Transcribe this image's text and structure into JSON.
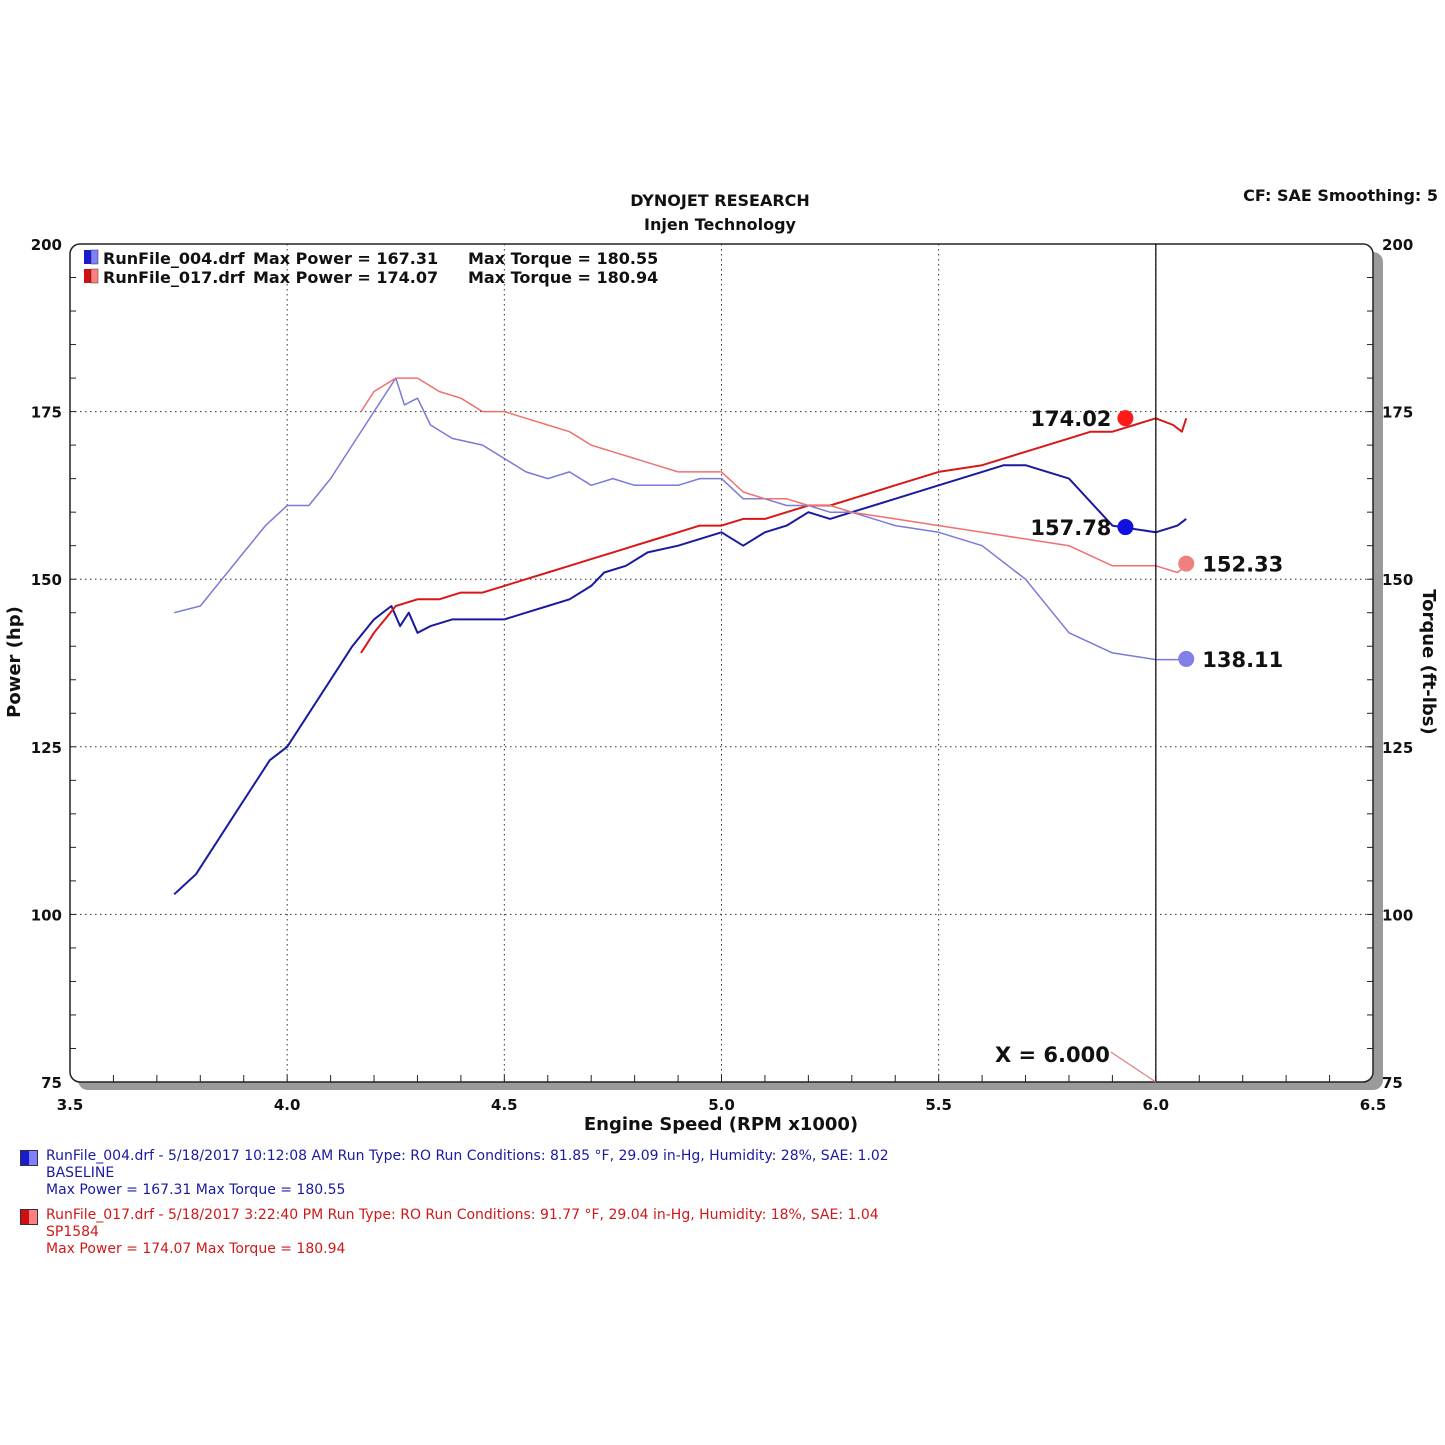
{
  "header": {
    "title": "DYNOJET RESEARCH",
    "subtitle": "Injen Technology",
    "settings": "CF: SAE  Smoothing: 5"
  },
  "legend": [
    {
      "file": "RunFile_004.drf",
      "max_power_text": "Max Power = 167.31",
      "max_torque_text": "Max Torque = 180.55",
      "color": "#1a1ad0"
    },
    {
      "file": "RunFile_017.drf",
      "max_power_text": "Max Power = 174.07",
      "max_torque_text": "Max Torque = 180.94",
      "color": "#d01010"
    }
  ],
  "cursor": {
    "label": "X = 6.000",
    "x": 6.0
  },
  "markers": [
    {
      "label": "174.02",
      "x": 5.93,
      "y": 174.02,
      "color": "#ff1a1a"
    },
    {
      "label": "157.78",
      "x": 5.93,
      "y": 157.78,
      "color": "#1010e0"
    },
    {
      "label": "152.33",
      "x": 6.07,
      "y": 152.33,
      "color": "#f08080"
    },
    {
      "label": "138.11",
      "x": 6.07,
      "y": 138.11,
      "color": "#8080e8"
    }
  ],
  "footer": {
    "runs": [
      {
        "line1": "RunFile_004.drf - 5/18/2017 10:12:08 AM  Run Type: RO  Run Conditions: 81.85 °F, 29.09 in-Hg,  Humidity:  28%, SAE: 1.02",
        "line2": "BASELINE",
        "line3": "Max Power = 167.31  Max Torque = 180.55"
      },
      {
        "line1": "RunFile_017.drf - 5/18/2017 3:22:40 PM  Run Type: RO  Run Conditions: 91.77 °F, 29.04 in-Hg,  Humidity:  18%, SAE: 1.04",
        "line2": "SP1584",
        "line3": "Max Power = 174.07  Max Torque = 180.94"
      }
    ]
  },
  "chart_data": {
    "type": "line",
    "xlabel": "Engine Speed (RPM x1000)",
    "ylabel": "Power (hp)",
    "y2label": "Torque (ft-lbs)",
    "xlim": [
      3.5,
      6.5
    ],
    "ylim": [
      75,
      200
    ],
    "y2lim": [
      75,
      200
    ],
    "xticks": [
      "3.5",
      "4.0",
      "4.5",
      "5.0",
      "5.5",
      "6.0",
      "6.5"
    ],
    "yticks": [
      "75",
      "100",
      "125",
      "150",
      "175",
      "200"
    ],
    "grid": true,
    "series": [
      {
        "name": "RunFile_004.drf",
        "quantity": "power",
        "color": "#1a1aa0",
        "width": 2,
        "x": [
          3.74,
          3.79,
          3.83,
          3.88,
          3.92,
          3.96,
          4.0,
          4.05,
          4.1,
          4.15,
          4.2,
          4.24,
          4.26,
          4.28,
          4.3,
          4.33,
          4.38,
          4.43,
          4.5,
          4.55,
          4.6,
          4.65,
          4.7,
          4.73,
          4.78,
          4.83,
          4.9,
          5.0,
          5.05,
          5.1,
          5.15,
          5.2,
          5.25,
          5.3,
          5.4,
          5.5,
          5.6,
          5.65,
          5.7,
          5.8,
          5.9,
          6.0,
          6.05,
          6.07
        ],
        "y": [
          103,
          106,
          110,
          115,
          119,
          123,
          125,
          130,
          135,
          140,
          144,
          146,
          143,
          145,
          142,
          143,
          144,
          144,
          144,
          145,
          146,
          147,
          149,
          151,
          152,
          154,
          155,
          157,
          155,
          157,
          158,
          160,
          159,
          160,
          162,
          164,
          166,
          167,
          167,
          165,
          158,
          157,
          158,
          159
        ]
      },
      {
        "name": "RunFile_017.drf",
        "quantity": "power",
        "color": "#d81818",
        "width": 2,
        "x": [
          4.17,
          4.2,
          4.25,
          4.3,
          4.35,
          4.4,
          4.45,
          4.5,
          4.55,
          4.6,
          4.65,
          4.7,
          4.75,
          4.8,
          4.85,
          4.9,
          4.95,
          5.0,
          5.05,
          5.1,
          5.15,
          5.2,
          5.25,
          5.3,
          5.4,
          5.5,
          5.6,
          5.7,
          5.8,
          5.85,
          5.9,
          5.95,
          6.0,
          6.04,
          6.06,
          6.07
        ],
        "y": [
          139,
          142,
          146,
          147,
          147,
          148,
          148,
          149,
          150,
          151,
          152,
          153,
          154,
          155,
          156,
          157,
          158,
          158,
          159,
          159,
          160,
          161,
          161,
          162,
          164,
          166,
          167,
          169,
          171,
          172,
          172,
          173,
          174,
          173,
          172,
          174
        ]
      },
      {
        "name": "RunFile_004.drf",
        "quantity": "torque",
        "color": "#7a7ad8",
        "width": 1.5,
        "x": [
          3.74,
          3.8,
          3.85,
          3.9,
          3.95,
          4.0,
          4.05,
          4.1,
          4.15,
          4.2,
          4.23,
          4.25,
          4.27,
          4.3,
          4.33,
          4.38,
          4.45,
          4.5,
          4.55,
          4.6,
          4.65,
          4.7,
          4.75,
          4.8,
          4.85,
          4.9,
          4.95,
          5.0,
          5.05,
          5.1,
          5.15,
          5.2,
          5.25,
          5.3,
          5.4,
          5.5,
          5.6,
          5.7,
          5.8,
          5.9,
          6.0,
          6.05,
          6.07
        ],
        "y": [
          145,
          146,
          150,
          154,
          158,
          161,
          161,
          165,
          170,
          175,
          178,
          180,
          176,
          177,
          173,
          171,
          170,
          168,
          166,
          165,
          166,
          164,
          165,
          164,
          164,
          164,
          165,
          165,
          162,
          162,
          161,
          161,
          160,
          160,
          158,
          157,
          155,
          150,
          142,
          139,
          138,
          138,
          138
        ]
      },
      {
        "name": "RunFile_017.drf",
        "quantity": "torque",
        "color": "#f07070",
        "width": 1.5,
        "x": [
          4.17,
          4.2,
          4.25,
          4.3,
          4.35,
          4.4,
          4.45,
          4.5,
          4.55,
          4.6,
          4.65,
          4.7,
          4.75,
          4.8,
          4.85,
          4.9,
          4.95,
          5.0,
          5.05,
          5.1,
          5.15,
          5.2,
          5.25,
          5.3,
          5.4,
          5.5,
          5.6,
          5.7,
          5.8,
          5.9,
          6.0,
          6.05,
          6.07
        ],
        "y": [
          175,
          178,
          180,
          180,
          178,
          177,
          175,
          175,
          174,
          173,
          172,
          170,
          169,
          168,
          167,
          166,
          166,
          166,
          163,
          162,
          162,
          161,
          161,
          160,
          159,
          158,
          157,
          156,
          155,
          152,
          152,
          151,
          152
        ]
      }
    ]
  }
}
